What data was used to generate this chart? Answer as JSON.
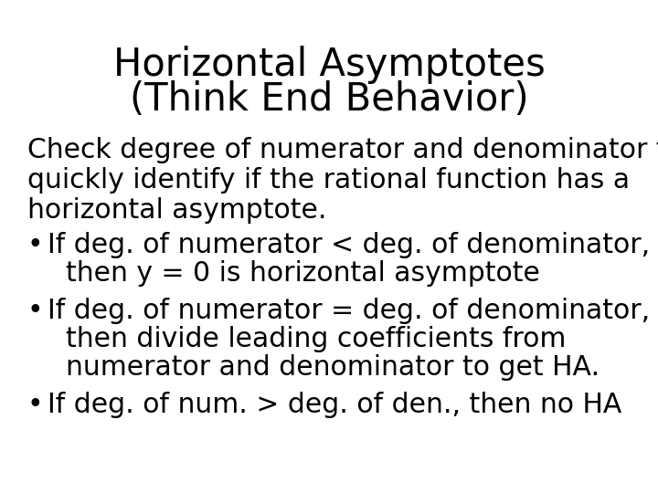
{
  "title_line1": "Horizontal Asymptotes",
  "title_line2": "(Think End Behavior)",
  "background_color": "#ffffff",
  "text_color": "#000000",
  "title_fontsize": 30,
  "body_fontsize": 21.5,
  "intro_line1": "Check degree of numerator and denominator to",
  "intro_line2": "quickly identify if the rational function has a",
  "intro_line3": "horizontal asymptote.",
  "bullet1_line1": "If deg. of numerator < deg. of denominator,",
  "bullet1_line2": "    then y = 0 is horizontal asymptote",
  "bullet2_line1": "If deg. of numerator = deg. of denominator,",
  "bullet2_line2": "    then divide leading coefficients from",
  "bullet2_line3": "    numerator and denominator to get HA.",
  "bullet3_line1": "If deg. of num. > deg. of den., then no HA"
}
